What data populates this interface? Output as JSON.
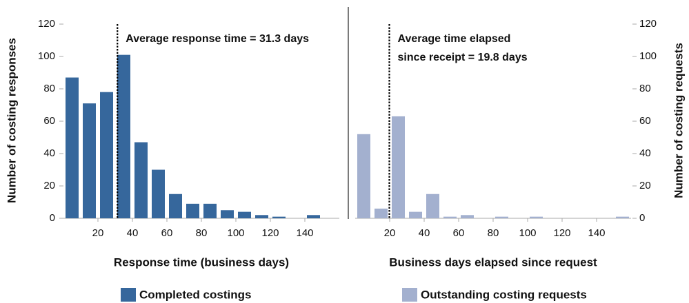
{
  "chart_data": [
    {
      "type": "histogram",
      "series": [
        {
          "name": "Completed costings",
          "color": "#36679c",
          "values": [
            87,
            71,
            78,
            101,
            47,
            30,
            15,
            9,
            9,
            5,
            4,
            2,
            1,
            0,
            2
          ]
        }
      ],
      "bins": [
        0,
        10,
        20,
        30,
        40,
        50,
        60,
        70,
        80,
        90,
        100,
        110,
        120,
        130,
        140,
        150
      ],
      "xlim": [
        0,
        160
      ],
      "xticks": [
        20,
        40,
        60,
        80,
        100,
        120,
        140
      ],
      "ylim": [
        0,
        120
      ],
      "yticks": [
        0,
        20,
        40,
        60,
        80,
        100,
        120
      ],
      "y_axis_side": "left",
      "xlabel": "Response time (business days)",
      "ylabel": "Number of costing responses",
      "average_line": 31.3,
      "annotation": [
        "Average response time = 31.3 days"
      ]
    },
    {
      "type": "histogram",
      "series": [
        {
          "name": "Outstanding costing requests",
          "color": "#a3b0cf",
          "values": [
            52,
            6,
            63,
            4,
            15,
            1,
            2,
            0,
            1,
            0,
            1,
            0,
            0,
            0,
            0,
            1
          ]
        }
      ],
      "bins": [
        0,
        10,
        20,
        30,
        40,
        50,
        60,
        70,
        80,
        90,
        100,
        110,
        120,
        130,
        140,
        150,
        160
      ],
      "xlim": [
        0,
        160
      ],
      "xticks": [
        20,
        40,
        60,
        80,
        100,
        120,
        140
      ],
      "ylim": [
        0,
        120
      ],
      "yticks": [
        0,
        20,
        40,
        60,
        80,
        100,
        120
      ],
      "y_axis_side": "right",
      "xlabel": "Business days elapsed since request",
      "ylabel": "Number of costing requests",
      "average_line": 19.8,
      "annotation": [
        "Average time elapsed",
        "since receipt = 19.8 days"
      ]
    }
  ]
}
